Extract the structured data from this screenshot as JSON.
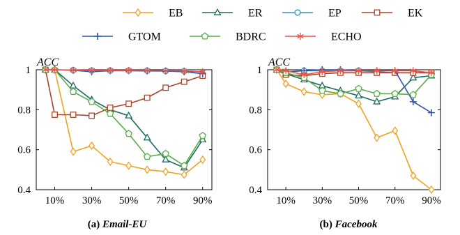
{
  "legend": {
    "rows": [
      [
        "EB",
        "ER",
        "EP",
        "EK"
      ],
      [
        "GTOM",
        "BDRC",
        "ECHO"
      ]
    ]
  },
  "markers": {
    "EB": "diamond",
    "ER": "triangle",
    "EP": "circle",
    "EK": "square",
    "GTOM": "plus",
    "BDRC": "pentagon",
    "ECHO": "asterisk"
  },
  "colors": {
    "EB": "#f0a21e",
    "ER": "#1b6b5f",
    "EP": "#2a93b3",
    "EK": "#a8452a",
    "GTOM": "#2f54b0",
    "BDRC": "#5aae4a",
    "ECHO": "#e6564a"
  },
  "chart_data": [
    {
      "type": "line",
      "caption_prefix": "(a) ",
      "caption_name": "Email-EU",
      "ylabel": "ACC",
      "x": [
        5,
        10,
        20,
        30,
        40,
        50,
        60,
        70,
        80,
        90
      ],
      "xticks": [
        10,
        30,
        50,
        70,
        90
      ],
      "xtick_labels": [
        "10%",
        "30%",
        "50%",
        "70%",
        "90%"
      ],
      "yticks": [
        0.4,
        0.6,
        0.8,
        1
      ],
      "ytick_labels": [
        "0.4",
        "0.6",
        "0.8",
        "1"
      ],
      "xlim": [
        0,
        95
      ],
      "ylim": [
        0.4,
        1.0
      ],
      "series": [
        {
          "name": "EB",
          "values": [
            1.0,
            1.0,
            0.59,
            0.62,
            0.54,
            0.52,
            0.5,
            0.49,
            0.475,
            0.55
          ]
        },
        {
          "name": "ER",
          "values": [
            1.0,
            1.0,
            0.92,
            0.85,
            0.8,
            0.77,
            0.66,
            0.55,
            0.51,
            0.65
          ]
        },
        {
          "name": "EP",
          "values": [
            1.0,
            1.0,
            0.998,
            0.996,
            0.996,
            0.996,
            0.995,
            0.994,
            0.993,
            0.98
          ]
        },
        {
          "name": "EK",
          "values": [
            1.0,
            0.775,
            0.775,
            0.77,
            0.81,
            0.83,
            0.86,
            0.91,
            0.94,
            0.97
          ]
        },
        {
          "name": "GTOM",
          "values": [
            1.0,
            1.0,
            0.997,
            0.99,
            0.995,
            0.995,
            0.994,
            0.993,
            0.99,
            0.98
          ]
        },
        {
          "name": "BDRC",
          "values": [
            1.0,
            1.0,
            0.89,
            0.84,
            0.78,
            0.68,
            0.565,
            0.58,
            0.52,
            0.67
          ]
        },
        {
          "name": "ECHO",
          "values": [
            1.0,
            1.0,
            0.998,
            0.997,
            0.997,
            0.997,
            0.996,
            0.995,
            0.994,
            0.99
          ]
        }
      ]
    },
    {
      "type": "line",
      "caption_prefix": "(b) ",
      "caption_name": "Facebook",
      "ylabel": "ACC",
      "x": [
        5,
        10,
        20,
        30,
        40,
        50,
        60,
        70,
        80,
        90
      ],
      "xticks": [
        10,
        30,
        50,
        70,
        90
      ],
      "xtick_labels": [
        "10%",
        "30%",
        "50%",
        "70%",
        "90%"
      ],
      "yticks": [
        0.4,
        0.6,
        0.8,
        1
      ],
      "ytick_labels": [
        "0.4",
        "0.6",
        "0.8",
        "1"
      ],
      "xlim": [
        0,
        95
      ],
      "ylim": [
        0.4,
        1.0
      ],
      "series": [
        {
          "name": "EB",
          "values": [
            1.0,
            0.93,
            0.89,
            0.875,
            0.88,
            0.83,
            0.66,
            0.695,
            0.47,
            0.4
          ]
        },
        {
          "name": "ER",
          "values": [
            1.0,
            0.98,
            0.95,
            0.92,
            0.895,
            0.87,
            0.84,
            0.865,
            0.96,
            0.97
          ]
        },
        {
          "name": "EP",
          "values": [
            1.0,
            0.99,
            0.995,
            0.995,
            0.995,
            0.995,
            0.99,
            0.985,
            0.985,
            0.985
          ]
        },
        {
          "name": "EK",
          "values": [
            1.0,
            0.975,
            0.97,
            0.98,
            0.985,
            0.985,
            0.985,
            0.985,
            0.985,
            0.985
          ]
        },
        {
          "name": "GTOM",
          "values": [
            1.0,
            0.99,
            0.995,
            1.0,
            1.0,
            0.995,
            0.995,
            0.995,
            0.84,
            0.785
          ]
        },
        {
          "name": "BDRC",
          "values": [
            1.0,
            0.985,
            0.96,
            0.895,
            0.88,
            0.905,
            0.88,
            0.88,
            0.875,
            0.975
          ]
        },
        {
          "name": "ECHO",
          "values": [
            1.0,
            0.995,
            0.975,
            0.99,
            0.995,
            0.995,
            0.995,
            0.995,
            0.995,
            0.985
          ]
        }
      ]
    }
  ]
}
